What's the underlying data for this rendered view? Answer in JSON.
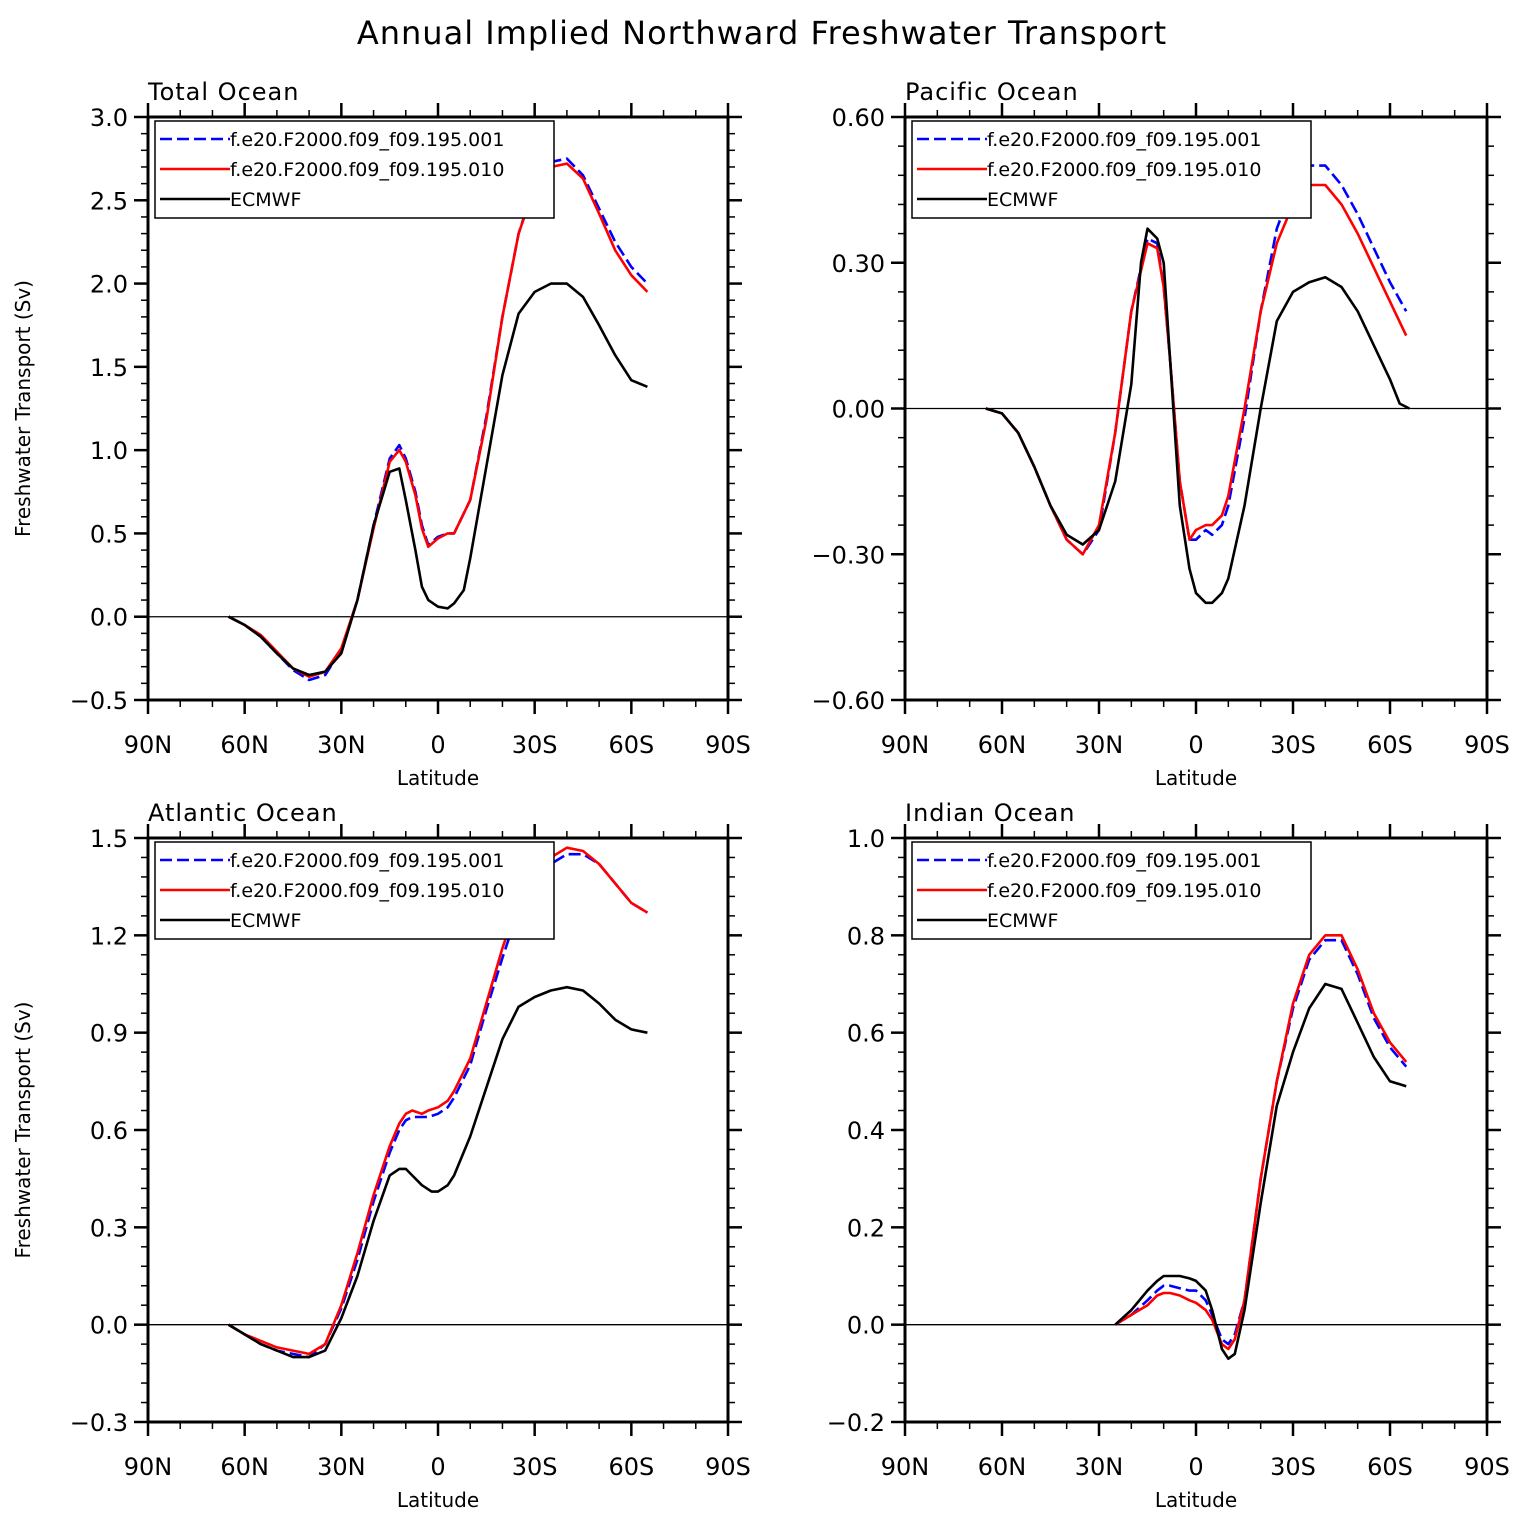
{
  "title": "Annual Implied Northward Freshwater Transport",
  "colors": {
    "series1": "#0000ff",
    "series2": "#ff0000",
    "series3": "#000000"
  },
  "chart_data": [
    {
      "type": "line",
      "title": "Total Ocean",
      "xlabel": "Latitude",
      "ylabel": "Freshwater Transport (Sv)",
      "xlim": [
        90,
        -90
      ],
      "ylim": [
        -0.5,
        3.0
      ],
      "yticks": [
        -0.5,
        0.0,
        0.5,
        1.0,
        1.5,
        2.0,
        2.5,
        3.0
      ],
      "ytick_labels": [
        "−0.5",
        "0.0",
        "0.5",
        "1.0",
        "1.5",
        "2.0",
        "2.5",
        "3.0"
      ],
      "xticks": [
        90,
        60,
        30,
        0,
        -30,
        -60,
        -90
      ],
      "xtick_labels": [
        "90N",
        "60N",
        "30N",
        "0",
        "30S",
        "60S",
        "90S"
      ],
      "legend": "top-left",
      "series": [
        {
          "name": "f.e20.F2000.f09_f09.195.001",
          "style": "dashed",
          "x": [
            65,
            60,
            55,
            50,
            45,
            40,
            35,
            30,
            25,
            20,
            15,
            12,
            10,
            7,
            5,
            3,
            0,
            -3,
            -5,
            -10,
            -15,
            -20,
            -25,
            -30,
            -35,
            -40,
            -45,
            -50,
            -55,
            -60,
            -65
          ],
          "y": [
            0.0,
            -0.05,
            -0.12,
            -0.22,
            -0.32,
            -0.38,
            -0.35,
            -0.2,
            0.1,
            0.55,
            0.95,
            1.03,
            0.95,
            0.75,
            0.55,
            0.43,
            0.48,
            0.5,
            0.5,
            0.7,
            1.2,
            1.8,
            2.3,
            2.6,
            2.73,
            2.75,
            2.65,
            2.45,
            2.25,
            2.1,
            2.0
          ]
        },
        {
          "name": "f.e20.F2000.f09_f09.195.010",
          "style": "solid",
          "x": [
            65,
            60,
            55,
            50,
            45,
            40,
            35,
            30,
            25,
            20,
            15,
            12,
            10,
            7,
            5,
            3,
            0,
            -3,
            -5,
            -10,
            -15,
            -20,
            -25,
            -30,
            -35,
            -40,
            -45,
            -50,
            -55,
            -60,
            -65
          ],
          "y": [
            0.0,
            -0.05,
            -0.11,
            -0.21,
            -0.31,
            -0.36,
            -0.33,
            -0.19,
            0.1,
            0.53,
            0.93,
            1.0,
            0.93,
            0.73,
            0.53,
            0.42,
            0.47,
            0.5,
            0.5,
            0.7,
            1.18,
            1.8,
            2.3,
            2.58,
            2.7,
            2.72,
            2.63,
            2.42,
            2.2,
            2.05,
            1.95
          ]
        },
        {
          "name": "ECMWF",
          "style": "solid",
          "x": [
            65,
            60,
            55,
            50,
            45,
            40,
            35,
            30,
            25,
            20,
            15,
            12,
            10,
            7,
            5,
            3,
            0,
            -3,
            -5,
            -8,
            -10,
            -15,
            -20,
            -25,
            -30,
            -35,
            -40,
            -45,
            -50,
            -55,
            -60,
            -65
          ],
          "y": [
            0.0,
            -0.05,
            -0.12,
            -0.22,
            -0.31,
            -0.35,
            -0.33,
            -0.22,
            0.1,
            0.55,
            0.87,
            0.89,
            0.7,
            0.4,
            0.18,
            0.1,
            0.06,
            0.05,
            0.08,
            0.16,
            0.35,
            0.9,
            1.45,
            1.82,
            1.95,
            2.0,
            2.0,
            1.92,
            1.75,
            1.57,
            1.42,
            1.38
          ]
        }
      ]
    },
    {
      "type": "line",
      "title": "Pacific Ocean",
      "xlabel": "Latitude",
      "ylabel": "",
      "xlim": [
        90,
        -90
      ],
      "ylim": [
        -0.6,
        0.6
      ],
      "yticks": [
        -0.6,
        -0.3,
        0.0,
        0.3,
        0.6
      ],
      "ytick_labels": [
        "−0.60",
        "−0.30",
        "0.00",
        "0.30",
        "0.60"
      ],
      "xticks": [
        90,
        60,
        30,
        0,
        -30,
        -60,
        -90
      ],
      "xtick_labels": [
        "90N",
        "60N",
        "30N",
        "0",
        "30S",
        "60S",
        "90S"
      ],
      "legend": "top-left",
      "series": [
        {
          "name": "f.e20.F2000.f09_f09.195.001",
          "style": "dashed",
          "x": [
            65,
            60,
            55,
            50,
            45,
            40,
            35,
            30,
            25,
            20,
            15,
            12,
            10,
            8,
            5,
            2,
            0,
            -3,
            -5,
            -8,
            -10,
            -15,
            -20,
            -25,
            -30,
            -35,
            -40,
            -45,
            -50,
            -55,
            -60,
            -65
          ],
          "y": [
            0.0,
            -0.01,
            -0.05,
            -0.12,
            -0.2,
            -0.27,
            -0.3,
            -0.25,
            -0.05,
            0.2,
            0.35,
            0.34,
            0.25,
            0.1,
            -0.15,
            -0.27,
            -0.27,
            -0.25,
            -0.26,
            -0.24,
            -0.2,
            -0.02,
            0.2,
            0.37,
            0.46,
            0.5,
            0.5,
            0.46,
            0.4,
            0.33,
            0.26,
            0.2
          ]
        },
        {
          "name": "f.e20.F2000.f09_f09.195.010",
          "style": "solid",
          "x": [
            65,
            60,
            55,
            50,
            45,
            40,
            35,
            30,
            25,
            20,
            15,
            12,
            10,
            8,
            5,
            2,
            0,
            -3,
            -5,
            -8,
            -10,
            -15,
            -20,
            -25,
            -30,
            -35,
            -40,
            -45,
            -50,
            -55,
            -60,
            -65
          ],
          "y": [
            0.0,
            -0.01,
            -0.05,
            -0.12,
            -0.2,
            -0.27,
            -0.3,
            -0.24,
            -0.05,
            0.2,
            0.34,
            0.33,
            0.25,
            0.1,
            -0.15,
            -0.27,
            -0.25,
            -0.24,
            -0.24,
            -0.22,
            -0.18,
            -0.0,
            0.2,
            0.34,
            0.42,
            0.46,
            0.46,
            0.42,
            0.36,
            0.29,
            0.22,
            0.15
          ]
        },
        {
          "name": "ECMWF",
          "style": "solid",
          "x": [
            65,
            60,
            55,
            50,
            45,
            40,
            35,
            30,
            25,
            20,
            17,
            15,
            12,
            10,
            8,
            5,
            2,
            0,
            -3,
            -5,
            -8,
            -10,
            -15,
            -20,
            -25,
            -30,
            -35,
            -40,
            -45,
            -50,
            -55,
            -60,
            -63,
            -66
          ],
          "y": [
            0.0,
            -0.01,
            -0.05,
            -0.12,
            -0.2,
            -0.26,
            -0.28,
            -0.25,
            -0.15,
            0.05,
            0.3,
            0.37,
            0.35,
            0.3,
            0.1,
            -0.2,
            -0.33,
            -0.38,
            -0.4,
            -0.4,
            -0.38,
            -0.35,
            -0.2,
            0.0,
            0.18,
            0.24,
            0.26,
            0.27,
            0.25,
            0.2,
            0.13,
            0.06,
            0.01,
            0.0
          ]
        }
      ]
    },
    {
      "type": "line",
      "title": "Atlantic Ocean",
      "xlabel": "Latitude",
      "ylabel": "Freshwater Transport (Sv)",
      "xlim": [
        90,
        -90
      ],
      "ylim": [
        -0.3,
        1.5
      ],
      "yticks": [
        -0.3,
        0.0,
        0.3,
        0.6,
        0.9,
        1.2,
        1.5
      ],
      "ytick_labels": [
        "−0.3",
        "0.0",
        "0.3",
        "0.6",
        "0.9",
        "1.2",
        "1.5"
      ],
      "xticks": [
        90,
        60,
        30,
        0,
        -30,
        -60,
        -90
      ],
      "xtick_labels": [
        "90N",
        "60N",
        "30N",
        "0",
        "30S",
        "60S",
        "90S"
      ],
      "legend": "top-left",
      "series": [
        {
          "name": "f.e20.F2000.f09_f09.195.001",
          "style": "dashed",
          "x": [
            65,
            60,
            55,
            50,
            45,
            40,
            35,
            30,
            25,
            20,
            15,
            12,
            10,
            8,
            5,
            3,
            0,
            -3,
            -5,
            -10,
            -15,
            -20,
            -25,
            -30,
            -35,
            -40,
            -45,
            -50,
            -55,
            -60,
            -65
          ],
          "y": [
            0.0,
            -0.03,
            -0.06,
            -0.08,
            -0.09,
            -0.1,
            -0.06,
            0.05,
            0.2,
            0.38,
            0.53,
            0.6,
            0.63,
            0.64,
            0.64,
            0.64,
            0.65,
            0.67,
            0.7,
            0.8,
            0.97,
            1.13,
            1.28,
            1.37,
            1.42,
            1.45,
            1.45,
            1.42,
            1.36,
            1.3,
            1.27
          ]
        },
        {
          "name": "f.e20.F2000.f09_f09.195.010",
          "style": "solid",
          "x": [
            65,
            60,
            55,
            50,
            45,
            40,
            35,
            30,
            25,
            20,
            15,
            12,
            10,
            8,
            5,
            3,
            0,
            -3,
            -5,
            -10,
            -15,
            -20,
            -25,
            -30,
            -35,
            -40,
            -45,
            -50,
            -55,
            -60,
            -65
          ],
          "y": [
            0.0,
            -0.03,
            -0.05,
            -0.07,
            -0.08,
            -0.09,
            -0.06,
            0.06,
            0.22,
            0.4,
            0.55,
            0.62,
            0.65,
            0.66,
            0.65,
            0.66,
            0.67,
            0.69,
            0.72,
            0.82,
            0.99,
            1.16,
            1.31,
            1.39,
            1.44,
            1.47,
            1.46,
            1.42,
            1.36,
            1.3,
            1.27
          ]
        },
        {
          "name": "ECMWF",
          "style": "solid",
          "x": [
            65,
            60,
            55,
            50,
            45,
            40,
            35,
            30,
            25,
            20,
            15,
            12,
            10,
            8,
            5,
            2,
            0,
            -3,
            -5,
            -10,
            -15,
            -20,
            -25,
            -30,
            -35,
            -40,
            -45,
            -50,
            -55,
            -60,
            -65
          ],
          "y": [
            0.0,
            -0.03,
            -0.06,
            -0.08,
            -0.1,
            -0.1,
            -0.08,
            0.02,
            0.15,
            0.32,
            0.46,
            0.48,
            0.48,
            0.46,
            0.43,
            0.41,
            0.41,
            0.43,
            0.46,
            0.58,
            0.73,
            0.88,
            0.98,
            1.01,
            1.03,
            1.04,
            1.03,
            0.99,
            0.94,
            0.91,
            0.9
          ]
        }
      ]
    },
    {
      "type": "line",
      "title": "Indian Ocean",
      "xlabel": "Latitude",
      "ylabel": "",
      "xlim": [
        90,
        -90
      ],
      "ylim": [
        -0.2,
        1.0
      ],
      "yticks": [
        -0.2,
        0.0,
        0.2,
        0.4,
        0.6,
        0.8,
        1.0
      ],
      "ytick_labels": [
        "−0.2",
        "0.0",
        "0.2",
        "0.4",
        "0.6",
        "0.8",
        "1.0"
      ],
      "xticks": [
        90,
        60,
        30,
        0,
        -30,
        -60,
        -90
      ],
      "xtick_labels": [
        "90N",
        "60N",
        "30N",
        "0",
        "30S",
        "60S",
        "90S"
      ],
      "legend": "top-left",
      "series": [
        {
          "name": "f.e20.F2000.f09_f09.195.001",
          "style": "dashed",
          "x": [
            25,
            20,
            15,
            12,
            10,
            8,
            5,
            2,
            0,
            -3,
            -5,
            -8,
            -10,
            -12,
            -15,
            -20,
            -25,
            -30,
            -35,
            -40,
            -45,
            -50,
            -55,
            -60,
            -65
          ],
          "y": [
            0.0,
            0.02,
            0.05,
            0.07,
            0.08,
            0.08,
            0.075,
            0.07,
            0.07,
            0.05,
            0.02,
            -0.03,
            -0.04,
            -0.02,
            0.05,
            0.3,
            0.5,
            0.65,
            0.75,
            0.79,
            0.79,
            0.72,
            0.63,
            0.57,
            0.53
          ]
        },
        {
          "name": "f.e20.F2000.f09_f09.195.010",
          "style": "solid",
          "x": [
            25,
            20,
            15,
            12,
            10,
            8,
            5,
            2,
            0,
            -3,
            -5,
            -8,
            -10,
            -12,
            -15,
            -20,
            -25,
            -30,
            -35,
            -40,
            -45,
            -50,
            -55,
            -60,
            -65
          ],
          "y": [
            0.0,
            0.02,
            0.04,
            0.06,
            0.065,
            0.065,
            0.06,
            0.05,
            0.045,
            0.03,
            0.01,
            -0.04,
            -0.05,
            -0.03,
            0.05,
            0.3,
            0.5,
            0.66,
            0.76,
            0.8,
            0.8,
            0.73,
            0.64,
            0.58,
            0.54
          ]
        },
        {
          "name": "ECMWF",
          "style": "solid",
          "x": [
            25,
            20,
            15,
            12,
            10,
            8,
            5,
            2,
            0,
            -3,
            -5,
            -8,
            -10,
            -12,
            -15,
            -20,
            -25,
            -30,
            -35,
            -40,
            -45,
            -50,
            -55,
            -60,
            -65
          ],
          "y": [
            0.0,
            0.03,
            0.07,
            0.09,
            0.1,
            0.1,
            0.1,
            0.095,
            0.09,
            0.07,
            0.03,
            -0.05,
            -0.07,
            -0.06,
            0.03,
            0.25,
            0.45,
            0.56,
            0.65,
            0.7,
            0.69,
            0.62,
            0.55,
            0.5,
            0.49
          ]
        }
      ]
    }
  ]
}
